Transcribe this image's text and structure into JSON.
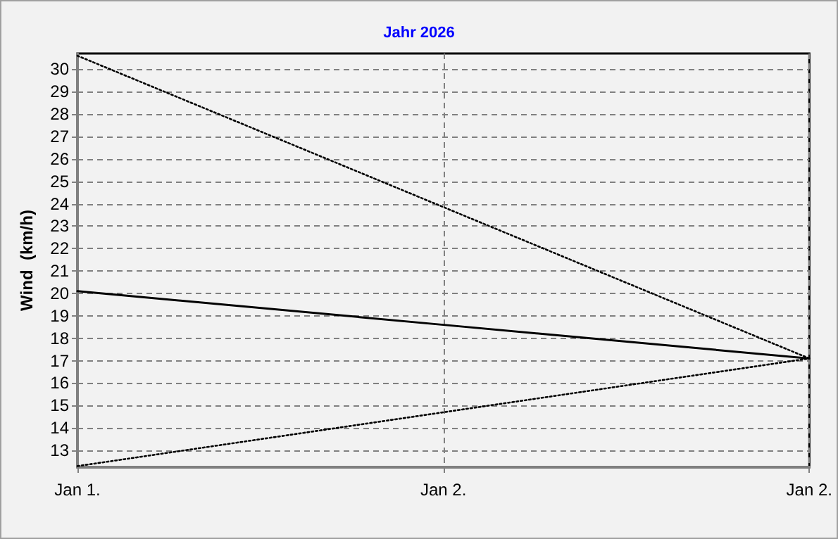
{
  "chart_data": {
    "type": "line",
    "title": "Jahr 2026",
    "ylabel": "Wind  (km/h)",
    "categories": [
      "Jan 1.",
      "Jan 2.",
      "Jan 2."
    ],
    "series": [
      {
        "color": "#000000",
        "line_style": "dotted",
        "values": [
          30.6,
          23.85,
          17.1
        ]
      },
      {
        "color": "#000000",
        "line_style": "solid",
        "values": [
          20.1,
          18.6,
          17.1
        ]
      },
      {
        "color": "#000000",
        "line_style": "dotted",
        "values": [
          12.3,
          14.7,
          17.1
        ]
      }
    ],
    "ylim": [
      12.25,
      30.7
    ],
    "yticks": [
      13,
      14,
      15,
      16,
      17,
      18,
      19,
      20,
      21,
      22,
      23,
      24,
      25,
      26,
      27,
      28,
      29,
      30
    ],
    "grid": true,
    "marker": "none"
  }
}
